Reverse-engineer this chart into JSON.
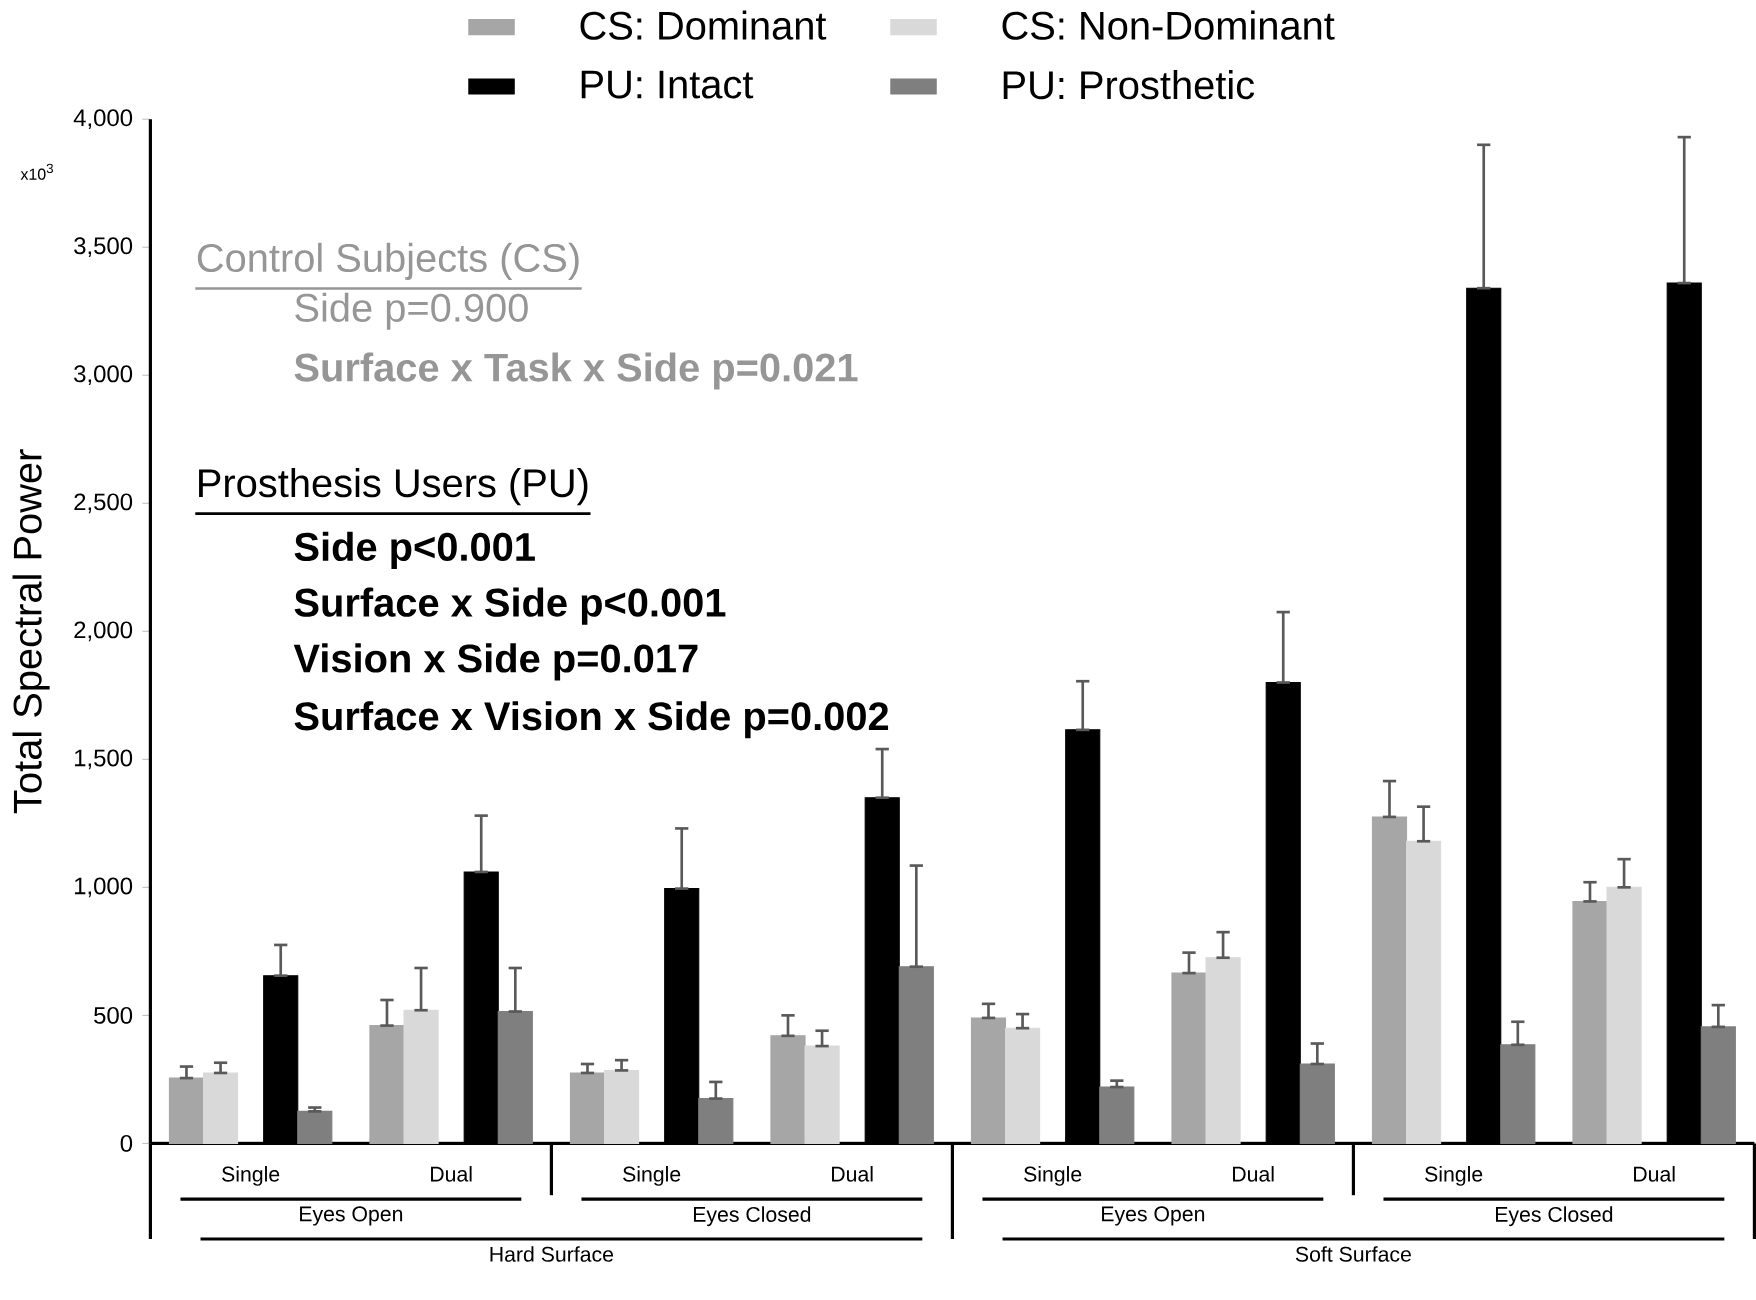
{
  "chart_data": {
    "type": "bar",
    "ylabel": "Total Spectral Power",
    "legend": "top",
    "categories": [
      "Single",
      "Dual",
      "Single",
      "Dual",
      "Single",
      "Dual",
      "Single",
      "Dual"
    ],
    "series": [
      {
        "name": "CS: Dominant",
        "color": "#a6a6a6",
        "values": [
          255,
          460,
          275,
          420,
          490,
          665,
          1275,
          945
        ],
        "errors": [
          [
            255,
            300
          ],
          [
            460,
            560
          ],
          [
            275,
            310
          ],
          [
            420,
            500
          ],
          [
            490,
            545
          ],
          [
            665,
            745
          ],
          [
            1275,
            1415
          ],
          [
            945,
            1020
          ]
        ]
      },
      {
        "name": "CS: Non-Dominant",
        "color": "#d9d9d9",
        "values": [
          275,
          520,
          285,
          380,
          450,
          725,
          1180,
          1000
        ],
        "errors": [
          [
            275,
            315
          ],
          [
            520,
            685
          ],
          [
            285,
            325
          ],
          [
            380,
            440
          ],
          [
            450,
            505
          ],
          [
            725,
            825
          ],
          [
            1180,
            1315
          ],
          [
            1000,
            1110
          ]
        ]
      },
      {
        "name": "PU: Intact",
        "color": "#000000",
        "values": [
          655,
          1060,
          995,
          1350,
          1615,
          1800,
          3340,
          3360
        ],
        "errors": [
          [
            655,
            775
          ],
          [
            1060,
            1280
          ],
          [
            995,
            1230
          ],
          [
            1350,
            1540
          ],
          [
            1615,
            1805
          ],
          [
            1800,
            2075
          ],
          [
            3340,
            3900
          ],
          [
            3360,
            3930
          ]
        ]
      },
      {
        "name": "PU: Prosthetic",
        "color": "#7f7f7f",
        "values": [
          125,
          515,
          175,
          690,
          220,
          310,
          385,
          455
        ],
        "errors": [
          [
            125,
            140
          ],
          [
            515,
            685
          ],
          [
            175,
            240
          ],
          [
            690,
            1085
          ],
          [
            220,
            245
          ],
          [
            310,
            390
          ],
          [
            385,
            475
          ],
          [
            455,
            540
          ]
        ]
      }
    ],
    "ylim": [
      0,
      4000
    ],
    "yticks": [
      0,
      500,
      {
        "value": 1000,
        "label": "1,000"
      },
      {
        "value": 1500,
        "label": "1,500"
      },
      {
        "value": 2000,
        "label": "2,000"
      },
      {
        "value": 2500,
        "label": "2,500"
      },
      {
        "value": 3000,
        "label": "3,000"
      },
      {
        "value": 3500,
        "label": "3,500"
      },
      {
        "value": 4000,
        "label": "4,000"
      }
    ],
    "annotations": [
      "x10$^{3}$",
      "Control Subjects (CS)",
      "Side p=0.900",
      "Surface x Task x Side p=0.021",
      "Prosthesis Users (PU)",
      "Side p<0.001",
      "Surface x Side p<0.001",
      "Vision x Side p=0.017",
      "Surface x Vision x Side p=0.002",
      "Eyes Open",
      "Eyes Closed",
      "Eyes Open",
      "Eyes Closed",
      "Hard Surface",
      "Soft Surface"
    ]
  }
}
